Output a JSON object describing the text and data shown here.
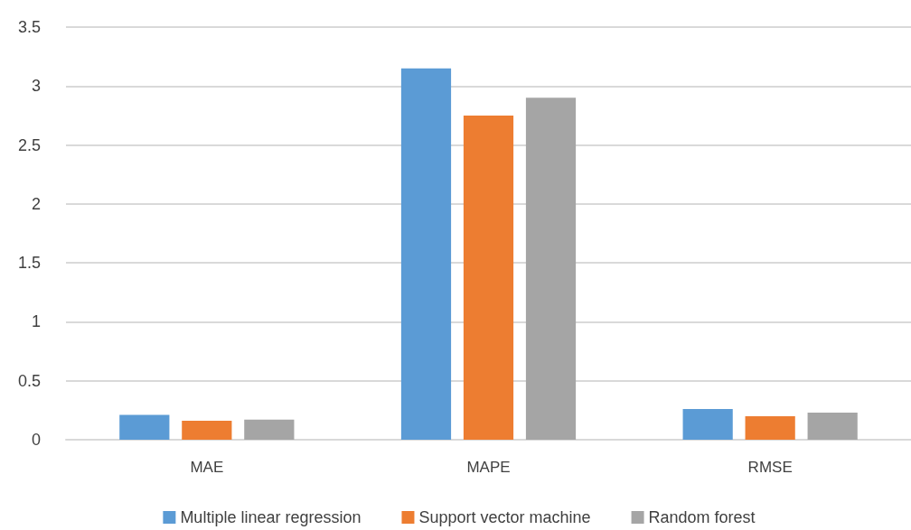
{
  "chart_data": {
    "type": "bar",
    "categories": [
      "MAE",
      "MAPE",
      "RMSE"
    ],
    "series": [
      {
        "name": "Multiple linear regression",
        "color": "#5b9bd5",
        "values": [
          0.21,
          3.15,
          0.26
        ]
      },
      {
        "name": "Support vector machine",
        "color": "#ed7d31",
        "values": [
          0.16,
          2.75,
          0.2
        ]
      },
      {
        "name": "Random forest",
        "color": "#a5a5a5",
        "values": [
          0.17,
          2.9,
          0.23
        ]
      }
    ],
    "ylim": [
      0,
      3.5
    ],
    "yticks": [
      0,
      0.5,
      1,
      1.5,
      2,
      2.5,
      3,
      3.5
    ],
    "grid": "y",
    "legend": "bottom"
  }
}
